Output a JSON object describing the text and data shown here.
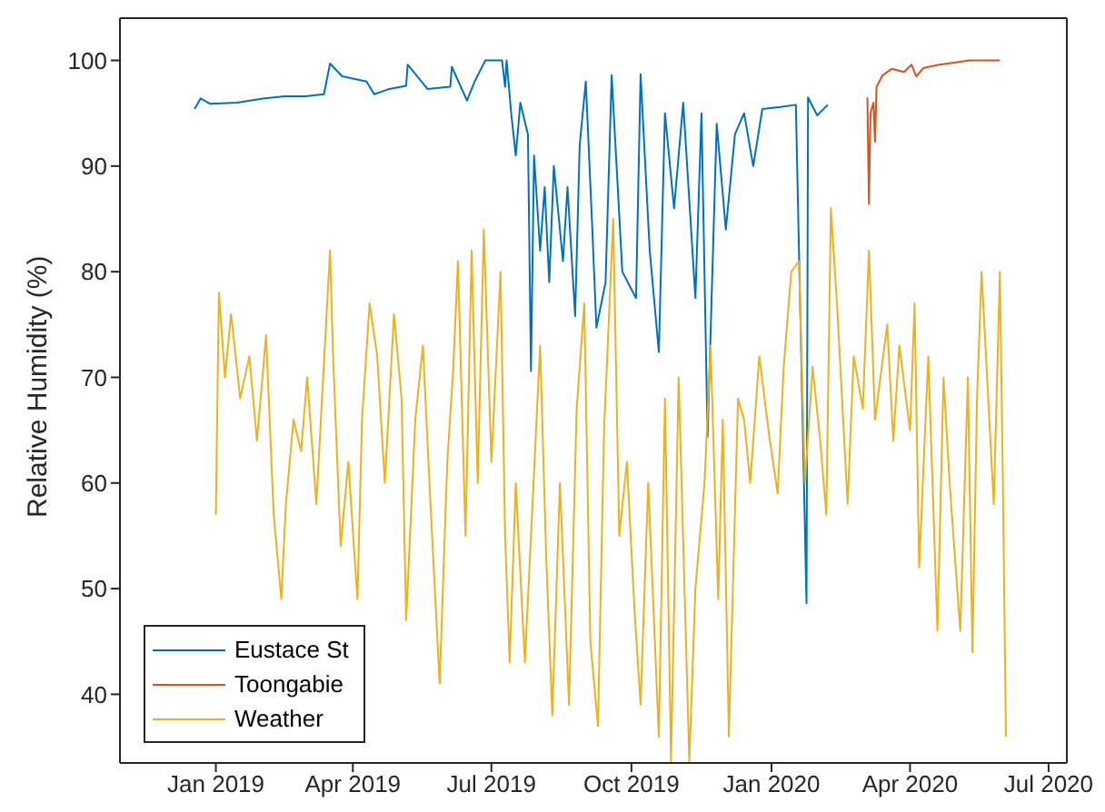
{
  "chart_data": {
    "type": "line",
    "ylabel": "Relative Humidity (%)",
    "xlim": [
      "2018-10-30",
      "2020-07-13"
    ],
    "ylim": [
      33.5,
      104
    ],
    "xticks": [
      {
        "value": "2019-01-01",
        "label": "Jan 2019"
      },
      {
        "value": "2019-04-01",
        "label": "Apr 2019"
      },
      {
        "value": "2019-07-01",
        "label": "Jul 2019"
      },
      {
        "value": "2019-10-01",
        "label": "Oct 2019"
      },
      {
        "value": "2020-01-01",
        "label": "Jan 2020"
      },
      {
        "value": "2020-04-01",
        "label": "Apr 2020"
      },
      {
        "value": "2020-07-01",
        "label": "Jul 2020"
      }
    ],
    "yticks": [
      40,
      50,
      60,
      70,
      80,
      90,
      100
    ],
    "legend": "bottom left",
    "marker": "none",
    "line_style": "solid",
    "series": [
      {
        "name": "Eustace St",
        "color": "#0072bd",
        "x": [
          "2018-12-18",
          "2018-12-22",
          "2018-12-28",
          "2019-01-15",
          "2019-02-01",
          "2019-02-15",
          "2019-03-01",
          "2019-03-13",
          "2019-03-17",
          "2019-03-25",
          "2019-04-10",
          "2019-04-15",
          "2019-04-25",
          "2019-05-06",
          "2019-05-07",
          "2019-05-20",
          "2019-06-04",
          "2019-06-05",
          "2019-06-15",
          "2019-06-20",
          "2019-06-27",
          "2019-07-08",
          "2019-07-10",
          "2019-07-11",
          "2019-07-14",
          "2019-07-17",
          "2019-07-20",
          "2019-07-25",
          "2019-07-27",
          "2019-07-29",
          "2019-08-02",
          "2019-08-05",
          "2019-08-08",
          "2019-08-11",
          "2019-08-17",
          "2019-08-20",
          "2019-08-25",
          "2019-08-28",
          "2019-09-01",
          "2019-09-05",
          "2019-09-08",
          "2019-09-14",
          "2019-09-18",
          "2019-09-25",
          "2019-10-04",
          "2019-10-07",
          "2019-10-13",
          "2019-10-19",
          "2019-10-23",
          "2019-10-29",
          "2019-11-04",
          "2019-11-12",
          "2019-11-16",
          "2019-11-20",
          "2019-11-26",
          "2019-12-02",
          "2019-12-08",
          "2019-12-14",
          "2019-12-20",
          "2019-12-26",
          "2020-01-07",
          "2020-01-17",
          "2020-01-24",
          "2020-01-25",
          "2020-01-31",
          "2020-02-07"
        ],
        "values": [
          95.4,
          96.4,
          95.9,
          96.0,
          96.4,
          96.6,
          96.6,
          96.8,
          99.7,
          98.5,
          98.0,
          96.8,
          97.3,
          97.6,
          99.6,
          97.3,
          97.5,
          99.4,
          96.2,
          98.0,
          100,
          100,
          97.5,
          100,
          95.0,
          91.0,
          96.0,
          93.0,
          70.6,
          91.0,
          82.0,
          88.0,
          79.0,
          90.0,
          81.0,
          88.0,
          75.8,
          92.0,
          98.0,
          85.0,
          74.7,
          79.0,
          98.6,
          80.0,
          77.5,
          98.7,
          82.0,
          72.4,
          95.0,
          86.0,
          96.0,
          77.5,
          95.0,
          64.4,
          94.0,
          84.0,
          93.0,
          95.0,
          90.0,
          95.4,
          95.6,
          95.8,
          48.6,
          96.5,
          94.8,
          95.8
        ]
      },
      {
        "name": "Toongabie",
        "color": "#d95319",
        "x": [
          "2020-03-04",
          "2020-03-05",
          "2020-03-06",
          "2020-03-08",
          "2020-03-09",
          "2020-03-10",
          "2020-03-14",
          "2020-03-20",
          "2020-03-28",
          "2020-04-02",
          "2020-04-05",
          "2020-04-10",
          "2020-04-20",
          "2020-05-01",
          "2020-05-10",
          "2020-05-30"
        ],
        "values": [
          96.5,
          86.4,
          95.0,
          96.0,
          92.3,
          97.5,
          98.6,
          99.2,
          98.9,
          99.6,
          98.5,
          99.3,
          99.6,
          99.8,
          100,
          100
        ]
      },
      {
        "name": "Weather",
        "color": "#edb120",
        "x": [
          "2019-01-01",
          "2019-01-03",
          "2019-01-07",
          "2019-01-11",
          "2019-01-17",
          "2019-01-23",
          "2019-01-28",
          "2019-02-03",
          "2019-02-08",
          "2019-02-13",
          "2019-02-16",
          "2019-02-21",
          "2019-02-26",
          "2019-03-02",
          "2019-03-08",
          "2019-03-17",
          "2019-03-19",
          "2019-03-24",
          "2019-03-29",
          "2019-04-04",
          "2019-04-07",
          "2019-04-12",
          "2019-04-17",
          "2019-04-22",
          "2019-04-28",
          "2019-05-03",
          "2019-05-06",
          "2019-05-12",
          "2019-05-17",
          "2019-05-22",
          "2019-05-28",
          "2019-06-02",
          "2019-06-06",
          "2019-06-09",
          "2019-06-14",
          "2019-06-18",
          "2019-06-22",
          "2019-06-26",
          "2019-07-01",
          "2019-07-07",
          "2019-07-10",
          "2019-07-13",
          "2019-07-17",
          "2019-07-23",
          "2019-08-02",
          "2019-08-06",
          "2019-08-10",
          "2019-08-15",
          "2019-08-21",
          "2019-08-26",
          "2019-08-31",
          "2019-09-04",
          "2019-09-09",
          "2019-09-13",
          "2019-09-19",
          "2019-09-23",
          "2019-09-28",
          "2019-10-03",
          "2019-10-07",
          "2019-10-12",
          "2019-10-19",
          "2019-10-23",
          "2019-10-27",
          "2019-11-01",
          "2019-11-08",
          "2019-11-12",
          "2019-11-18",
          "2019-11-22",
          "2019-11-27",
          "2019-11-30",
          "2019-12-04",
          "2019-12-10",
          "2019-12-14",
          "2019-12-18",
          "2019-12-24",
          "2019-12-30",
          "2020-01-05",
          "2020-01-09",
          "2020-01-14",
          "2020-01-19",
          "2020-01-23",
          "2020-01-28",
          "2020-02-02",
          "2020-02-06",
          "2020-02-09",
          "2020-02-13",
          "2020-02-20",
          "2020-02-24",
          "2020-03-01",
          "2020-03-05",
          "2020-03-09",
          "2020-03-17",
          "2020-03-21",
          "2020-03-25",
          "2020-04-01",
          "2020-04-04",
          "2020-04-07",
          "2020-04-13",
          "2020-04-19",
          "2020-04-23",
          "2020-04-27",
          "2020-05-04",
          "2020-05-09",
          "2020-05-12",
          "2020-05-15",
          "2020-05-18",
          "2020-05-26",
          "2020-05-30",
          "2020-06-01",
          "2020-06-03"
        ],
        "values": [
          57,
          78,
          70,
          76,
          68,
          72,
          64,
          74,
          57,
          49,
          58,
          66,
          63,
          70,
          58,
          82,
          72,
          54,
          62,
          49,
          66,
          77,
          72,
          60,
          76,
          68,
          47,
          66,
          73,
          58,
          41,
          62,
          71,
          81,
          55,
          82,
          60,
          84,
          62,
          80,
          55,
          43,
          60,
          43,
          73,
          53,
          38,
          60,
          39,
          67,
          77,
          45,
          37,
          65,
          85,
          55,
          62,
          48,
          39,
          60,
          36,
          68,
          33.6,
          70,
          33.6,
          50,
          60,
          73,
          49,
          66,
          36,
          68,
          66,
          60,
          72,
          65,
          59,
          71,
          80,
          81,
          60,
          71,
          64,
          57,
          86,
          77,
          58,
          72,
          67,
          82,
          66,
          75,
          64,
          73,
          65,
          77,
          52,
          72,
          46,
          70,
          60,
          46,
          70,
          44,
          68,
          80,
          58,
          80,
          60,
          36
        ]
      }
    ]
  }
}
